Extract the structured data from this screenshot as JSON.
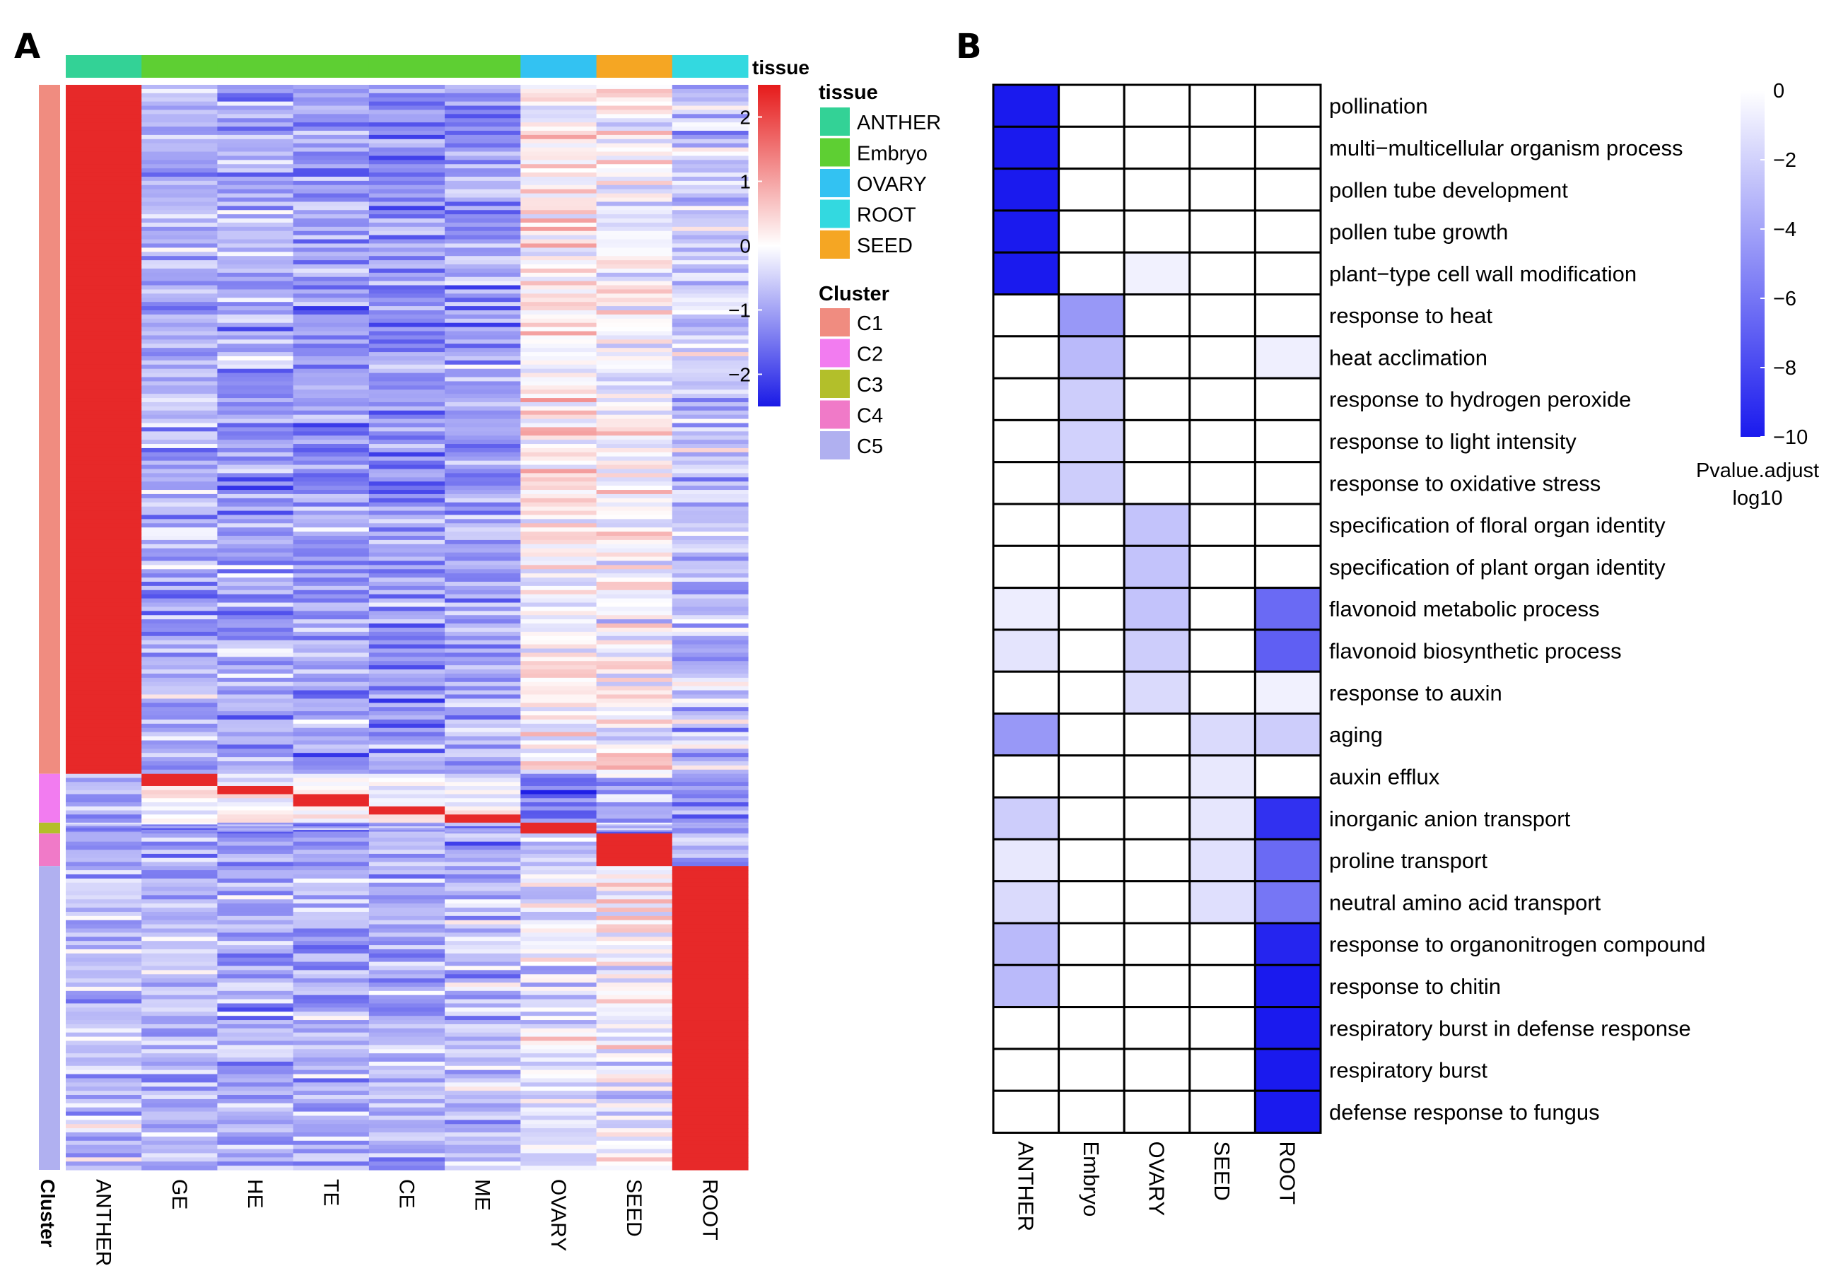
{
  "panels": {
    "a_label": "A",
    "b_label": "B"
  },
  "chart_data": [
    {
      "type": "heatmap",
      "panel": "A",
      "title": "",
      "columns": [
        "ANTHER",
        "GE",
        "HE",
        "TE",
        "CE",
        "ME",
        "OVARY",
        "SEED",
        "ROOT"
      ],
      "column_tissue": [
        "ANTHER",
        "Embryo",
        "Embryo",
        "Embryo",
        "Embryo",
        "Embryo",
        "OVARY",
        "SEED",
        "ROOT"
      ],
      "row_annotation_title": "Cluster",
      "column_annotation_title": "tissue",
      "color_scale": {
        "min": -2.5,
        "max": 2.5,
        "ticks": [
          2,
          1,
          0,
          -1,
          -2
        ],
        "low": "#1f1fe6",
        "mid": "#ffffff",
        "high": "#e62020"
      },
      "clusters": [
        {
          "name": "C1",
          "row_fraction": 0.635,
          "color": "#f08c80",
          "high_in": [
            "ANTHER"
          ]
        },
        {
          "name": "C2",
          "row_fraction": 0.045,
          "color": "#f27cf0",
          "high_in": [
            "GE",
            "HE",
            "TE",
            "CE",
            "ME"
          ]
        },
        {
          "name": "C3",
          "row_fraction": 0.01,
          "color": "#b3bf2a",
          "high_in": [
            "OVARY"
          ]
        },
        {
          "name": "C4",
          "row_fraction": 0.03,
          "color": "#f07ac8",
          "high_in": [
            "SEED"
          ]
        },
        {
          "name": "C5",
          "row_fraction": 0.28,
          "color": "#b0b0f0",
          "high_in": [
            "ROOT"
          ]
        }
      ],
      "tissue_legend": {
        "title": "tissue",
        "items": [
          {
            "name": "ANTHER",
            "color": "#33d296"
          },
          {
            "name": "Embryo",
            "color": "#5ecf33"
          },
          {
            "name": "OVARY",
            "color": "#33c2f2"
          },
          {
            "name": "ROOT",
            "color": "#33d9e0"
          },
          {
            "name": "SEED",
            "color": "#f5a623"
          }
        ]
      },
      "cluster_legend": {
        "title": "Cluster",
        "items": [
          "C1",
          "C2",
          "C3",
          "C4",
          "C5"
        ]
      }
    },
    {
      "type": "heatmap",
      "panel": "B",
      "title": "",
      "xlabel": "",
      "ylabel": "",
      "columns": [
        "ANTHER",
        "Embryo",
        "OVARY",
        "SEED",
        "ROOT"
      ],
      "rows": [
        {
          "term": "pollination",
          "values": [
            -10,
            0,
            0,
            0,
            0
          ]
        },
        {
          "term": "multi−multicellular organism process",
          "values": [
            -10,
            0,
            0,
            0,
            0
          ]
        },
        {
          "term": "pollen tube development",
          "values": [
            -10,
            0,
            0,
            0,
            0
          ]
        },
        {
          "term": "pollen tube growth",
          "values": [
            -10,
            0,
            0,
            0,
            0
          ]
        },
        {
          "term": "plant−type cell wall modification",
          "values": [
            -10,
            0,
            -0.6,
            0,
            0
          ]
        },
        {
          "term": "response to heat",
          "values": [
            0,
            -4.5,
            0,
            0,
            0
          ]
        },
        {
          "term": "heat acclimation",
          "values": [
            0,
            -3,
            0,
            0,
            -0.7
          ]
        },
        {
          "term": "response to hydrogen peroxide",
          "values": [
            0,
            -2.2,
            0,
            0,
            0
          ]
        },
        {
          "term": "response to light intensity",
          "values": [
            0,
            -2,
            0,
            0,
            0
          ]
        },
        {
          "term": "response to oxidative stress",
          "values": [
            0,
            -2.2,
            0,
            0,
            0
          ]
        },
        {
          "term": "specification of floral organ identity",
          "values": [
            0,
            0,
            -2.6,
            0,
            0
          ]
        },
        {
          "term": "specification of plant organ identity",
          "values": [
            0,
            0,
            -2.6,
            0,
            0
          ]
        },
        {
          "term": "flavonoid metabolic process",
          "values": [
            -0.8,
            0,
            -2.6,
            0,
            -6.5
          ]
        },
        {
          "term": "flavonoid biosynthetic process",
          "values": [
            -1.2,
            0,
            -2.2,
            0,
            -7
          ]
        },
        {
          "term": "response to auxin",
          "values": [
            0,
            0,
            -1.6,
            0,
            -0.6
          ]
        },
        {
          "term": "aging",
          "values": [
            -4.5,
            0,
            0,
            -1.6,
            -2.2
          ]
        },
        {
          "term": "auxin efflux",
          "values": [
            0,
            0,
            0,
            -1,
            0
          ]
        },
        {
          "term": "inorganic anion transport",
          "values": [
            -2.2,
            0,
            0,
            -1.1,
            -9
          ]
        },
        {
          "term": "proline transport",
          "values": [
            -1,
            0,
            0,
            -1.3,
            -6.5
          ]
        },
        {
          "term": "neutral amino acid transport",
          "values": [
            -1.6,
            0,
            0,
            -1.4,
            -6
          ]
        },
        {
          "term": "response to organonitrogen compound",
          "values": [
            -3,
            0,
            0,
            0,
            -9.5
          ]
        },
        {
          "term": "response to chitin",
          "values": [
            -3,
            0,
            0,
            0,
            -10
          ]
        },
        {
          "term": "respiratory burst in defense response",
          "values": [
            0,
            0,
            0,
            0,
            -10
          ]
        },
        {
          "term": "respiratory burst",
          "values": [
            0,
            0,
            0,
            0,
            -10
          ]
        },
        {
          "term": "defense response to fungus",
          "values": [
            0,
            0,
            0,
            0,
            -10
          ]
        }
      ],
      "color_scale": {
        "min": -10,
        "max": 0,
        "ticks": [
          0,
          -2,
          -4,
          -6,
          -8,
          -10
        ],
        "low": "#1a1aee",
        "high": "#ffffff",
        "title_line1": "Pvalue.adjust",
        "title_line2": "log10"
      }
    }
  ]
}
